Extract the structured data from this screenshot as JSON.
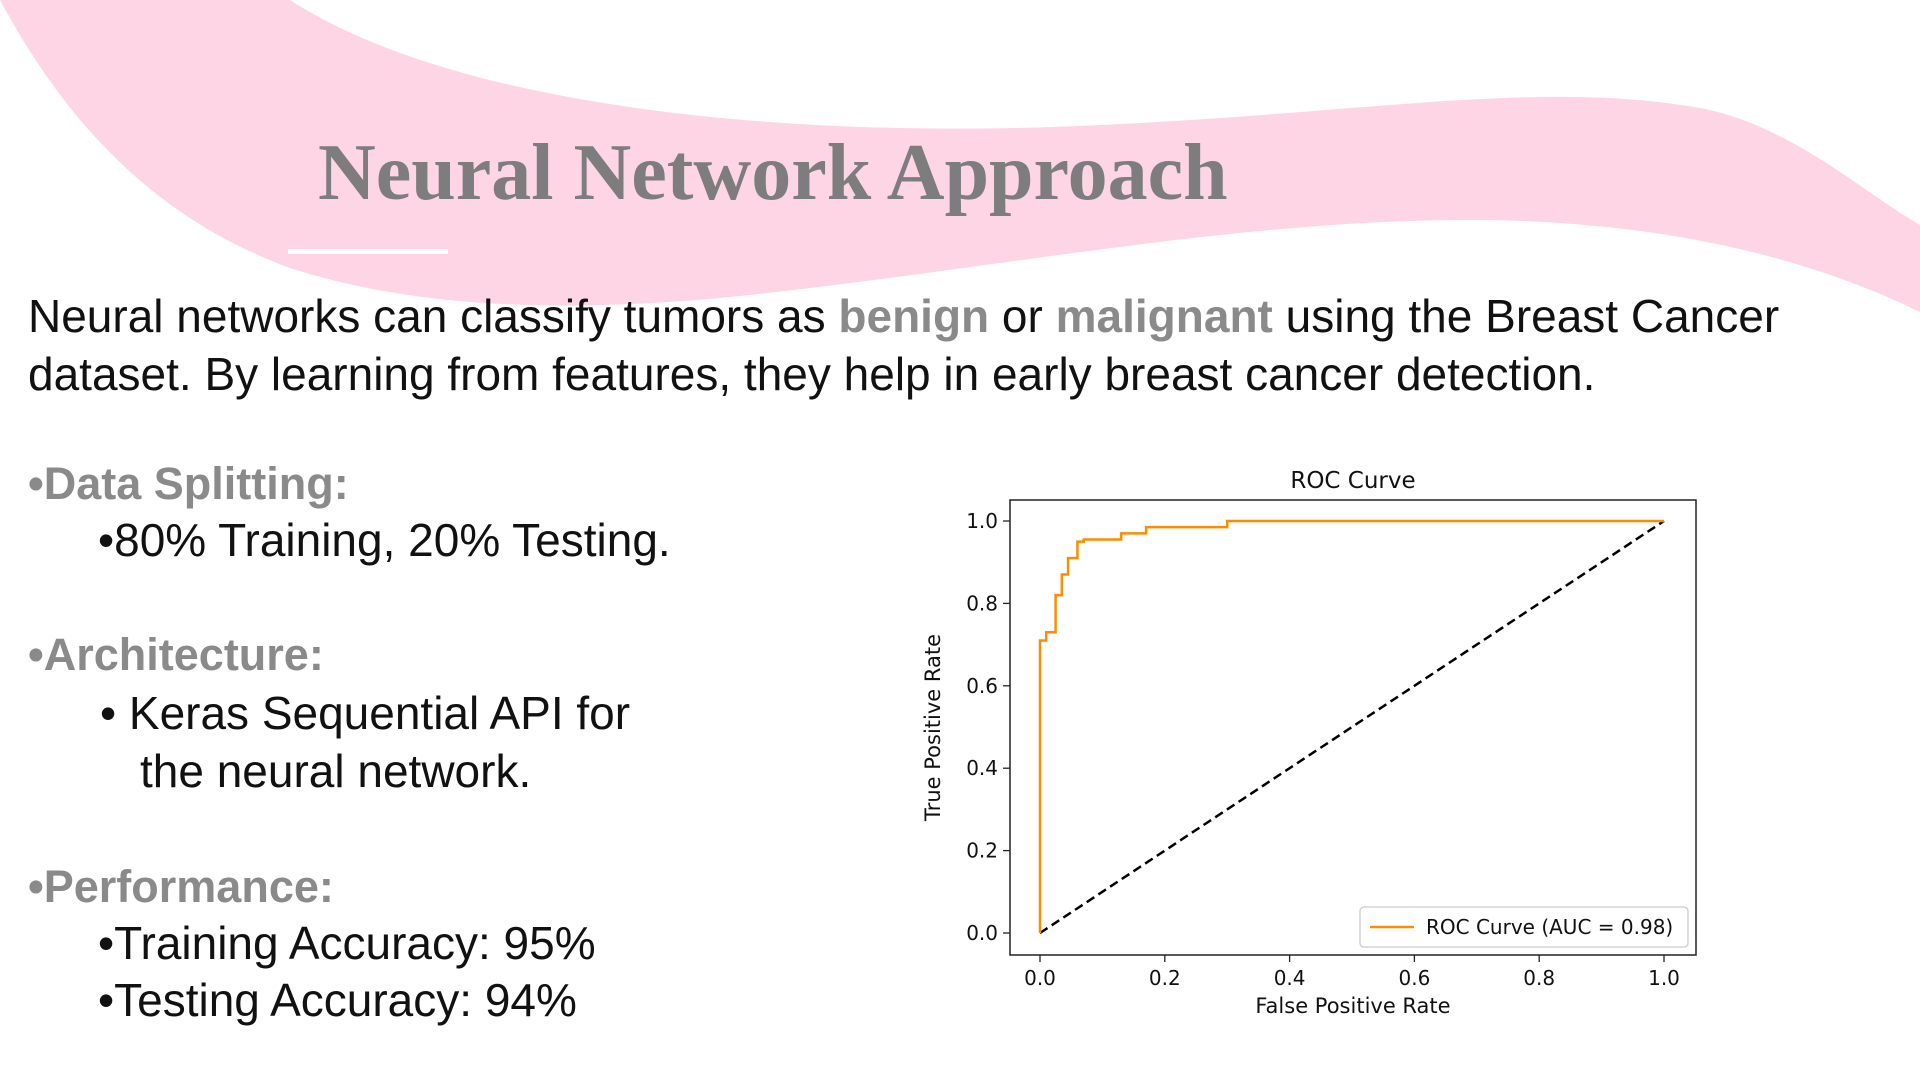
{
  "slide": {
    "title": "Neural Network Approach",
    "intro": {
      "part1": "Neural networks can classify tumors as ",
      "highlight1": "benign",
      "part2": " or ",
      "highlight2": "malignant",
      "part3": " using the Breast Cancer dataset. By learning from features, they help in early breast cancer detection."
    },
    "sections": [
      {
        "heading": "•Data Splitting:",
        "items": [
          "•80% Training, 20% Testing."
        ]
      },
      {
        "heading": "•Architecture:",
        "items": [
          "• Keras Sequential API for",
          "the neural network."
        ]
      },
      {
        "heading": "•Performance:",
        "items": [
          "•Training Accuracy: 95%",
          "•Testing Accuracy: 94%"
        ]
      }
    ]
  },
  "colors": {
    "accent_pink": "#fdd5e5",
    "heading_gray": "#7d7d7d",
    "roc_line": "#ff8c00",
    "diagonal": "#000000"
  },
  "chart_data": {
    "type": "line",
    "title": "ROC Curve",
    "xlabel": "False Positive Rate",
    "ylabel": "True Positive Rate",
    "xlim": [
      0.0,
      1.0
    ],
    "ylim": [
      0.0,
      1.0
    ],
    "xticks": [
      "0.0",
      "0.2",
      "0.4",
      "0.6",
      "0.8",
      "1.0"
    ],
    "yticks": [
      "0.0",
      "0.2",
      "0.4",
      "0.6",
      "0.8",
      "1.0"
    ],
    "legend_position": "lower-right",
    "grid": false,
    "series": [
      {
        "name": "ROC Curve (AUC = 0.98)",
        "color": "#ff8c00",
        "style": "step",
        "x": [
          0.0,
          0.0,
          0.0,
          0.01,
          0.01,
          0.025,
          0.025,
          0.035,
          0.035,
          0.045,
          0.045,
          0.06,
          0.06,
          0.07,
          0.07,
          0.13,
          0.13,
          0.17,
          0.17,
          0.3,
          0.3,
          1.0
        ],
        "y": [
          0.0,
          0.0,
          0.71,
          0.71,
          0.73,
          0.73,
          0.82,
          0.82,
          0.87,
          0.87,
          0.91,
          0.91,
          0.95,
          0.95,
          0.955,
          0.955,
          0.97,
          0.97,
          0.985,
          0.985,
          1.0,
          1.0
        ]
      },
      {
        "name": "",
        "color": "#000000",
        "style": "dashed",
        "x": [
          0.0,
          1.0
        ],
        "y": [
          0.0,
          1.0
        ]
      }
    ]
  }
}
